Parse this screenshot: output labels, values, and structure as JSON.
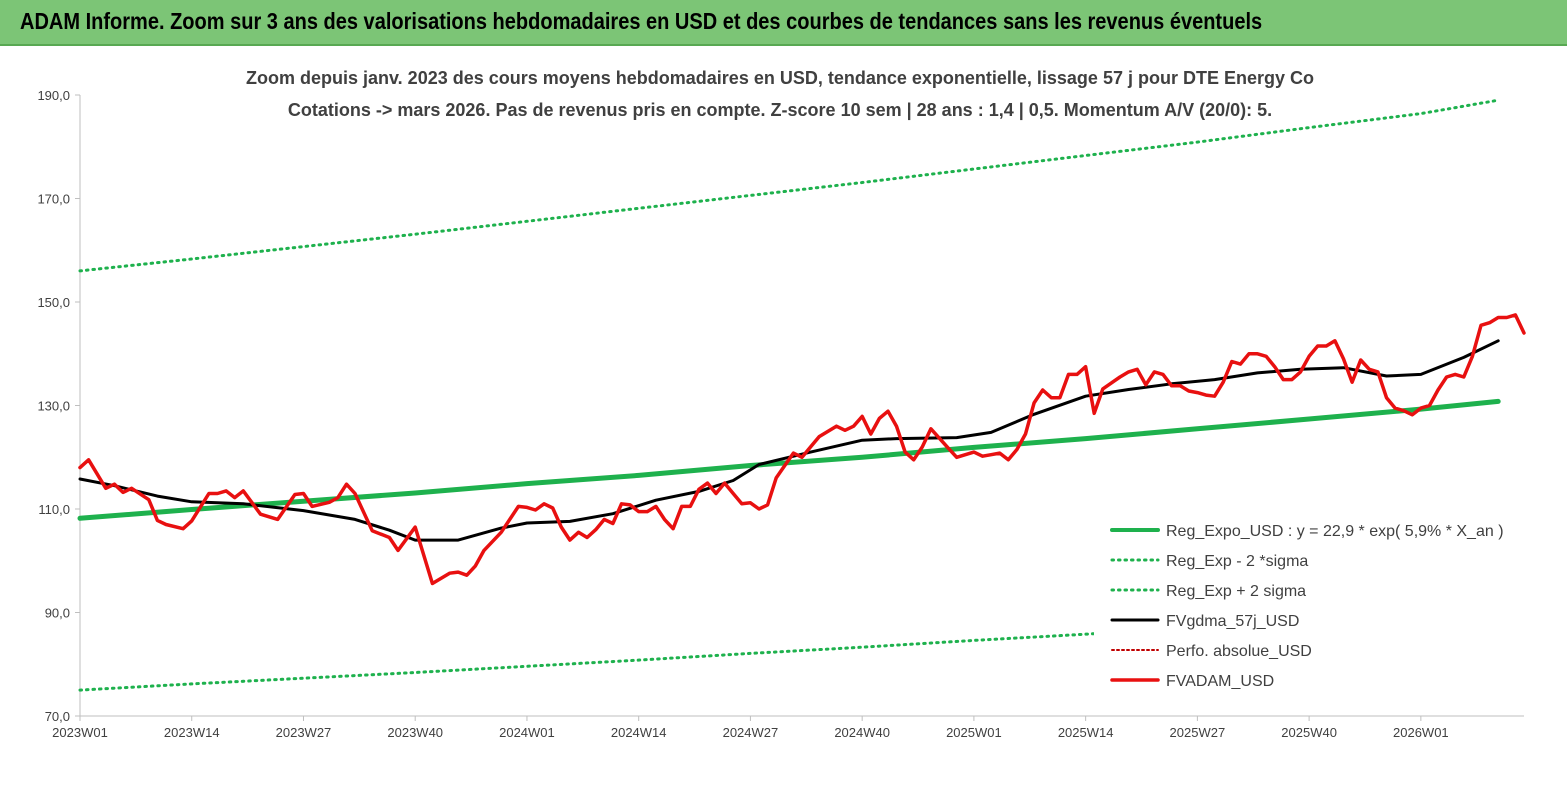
{
  "header": {
    "title": "ADAM Informe. Zoom sur 3 ans des valorisations hebdomadaires en USD et des courbes de tendances sans les revenus éventuels"
  },
  "colors": {
    "header_bg": "#7cc576",
    "trend": "#1eb14d",
    "band": "#1eb14d",
    "smooth": "#000000",
    "perfo": "#c00000",
    "price": "#e81010"
  },
  "chart_data": {
    "type": "line",
    "title": "Zoom depuis janv. 2023 des cours moyens hebdomadaires en USD, tendance exponentielle, lissage 57 j pour DTE Energy Co",
    "subtitle": "Cotations -> mars 2026. Pas de revenus pris en compte. Z-score 10 sem  | 28 ans : 1,4  | 0,5. Momentum A/V (20/0): 5.",
    "x_tick_labels": [
      "2023W01",
      "2023W14",
      "2023W27",
      "2023W40",
      "2024W01",
      "2024W14",
      "2024W27",
      "2024W40",
      "2025W01",
      "2025W14",
      "2025W27",
      "2025W40",
      "2026W01"
    ],
    "y_tick_labels": [
      "70,0",
      "90,0",
      "110,0",
      "130,0",
      "150,0",
      "170,0",
      "190,0"
    ],
    "ylim": [
      70,
      190
    ],
    "grid": false,
    "legend_position": "bottom-right",
    "series": [
      {
        "name": "Reg_Expo_USD : y = 22,9 * exp( 5,9% *  X_an )",
        "style": "solid-thick",
        "points": [
          [
            1,
            108.2
          ],
          [
            14,
            109.9
          ],
          [
            27,
            111.5
          ],
          [
            40,
            113.1
          ],
          [
            53,
            114.9
          ],
          [
            66,
            116.5
          ],
          [
            79,
            118.4
          ],
          [
            92,
            120.0
          ],
          [
            105,
            121.9
          ],
          [
            118,
            123.6
          ],
          [
            131,
            125.5
          ],
          [
            144,
            127.4
          ],
          [
            157,
            129.3
          ],
          [
            166,
            130.8
          ]
        ]
      },
      {
        "name": "Reg_Exp - 2 *sigma",
        "style": "dotted",
        "points": [
          [
            1,
            75.0
          ],
          [
            14,
            76.2
          ],
          [
            27,
            77.3
          ],
          [
            40,
            78.4
          ],
          [
            53,
            79.6
          ],
          [
            66,
            80.8
          ],
          [
            79,
            82.1
          ],
          [
            92,
            83.3
          ],
          [
            105,
            84.6
          ],
          [
            118,
            85.8
          ],
          [
            131,
            87.1
          ],
          [
            144,
            88.4
          ],
          [
            157,
            89.7
          ],
          [
            166,
            90.8
          ]
        ]
      },
      {
        "name": "Reg_Exp + 2 sigma",
        "style": "dotted",
        "points": [
          [
            1,
            156.0
          ],
          [
            14,
            158.3
          ],
          [
            27,
            160.7
          ],
          [
            40,
            163.1
          ],
          [
            53,
            165.6
          ],
          [
            66,
            168.1
          ],
          [
            79,
            170.6
          ],
          [
            92,
            173.1
          ],
          [
            105,
            175.7
          ],
          [
            118,
            178.3
          ],
          [
            131,
            180.9
          ],
          [
            144,
            183.7
          ],
          [
            157,
            186.4
          ],
          [
            166,
            189.0
          ]
        ]
      },
      {
        "name": "FVgdma_57j_USD",
        "style": "solid",
        "points": [
          [
            1,
            115.8
          ],
          [
            5,
            114.5
          ],
          [
            10,
            112.5
          ],
          [
            14,
            111.4
          ],
          [
            20,
            111.0
          ],
          [
            27,
            109.7
          ],
          [
            33,
            108.0
          ],
          [
            37,
            105.9
          ],
          [
            40,
            104.0
          ],
          [
            45,
            104.0
          ],
          [
            50,
            106.3
          ],
          [
            53,
            107.3
          ],
          [
            58,
            107.6
          ],
          [
            63,
            109.1
          ],
          [
            68,
            111.7
          ],
          [
            73,
            113.4
          ],
          [
            77,
            115.5
          ],
          [
            80,
            118.6
          ],
          [
            86,
            121.0
          ],
          [
            92,
            123.3
          ],
          [
            96,
            123.6
          ],
          [
            103,
            123.8
          ],
          [
            107,
            124.8
          ],
          [
            112,
            128.3
          ],
          [
            118,
            131.8
          ],
          [
            123,
            133.1
          ],
          [
            128,
            134.2
          ],
          [
            133,
            135.0
          ],
          [
            138,
            136.3
          ],
          [
            143,
            137.0
          ],
          [
            148,
            137.3
          ],
          [
            153,
            135.7
          ],
          [
            157,
            136.0
          ],
          [
            162,
            139.3
          ],
          [
            166,
            142.5
          ]
        ]
      },
      {
        "name": "Perfo. absolue_USD",
        "style": "dotted",
        "points": []
      },
      {
        "name": "FVADAM_USD",
        "style": "solid-thick",
        "points": [
          [
            1,
            118.0
          ],
          [
            2,
            119.5
          ],
          [
            4,
            114.0
          ],
          [
            5,
            114.8
          ],
          [
            6,
            113.2
          ],
          [
            7,
            114.0
          ],
          [
            9,
            111.8
          ],
          [
            10,
            107.8
          ],
          [
            11,
            107.0
          ],
          [
            13,
            106.2
          ],
          [
            14,
            107.7
          ],
          [
            16,
            113.0
          ],
          [
            17,
            113.0
          ],
          [
            18,
            113.5
          ],
          [
            19,
            112.2
          ],
          [
            20,
            113.5
          ],
          [
            22,
            109.0
          ],
          [
            24,
            108.0
          ],
          [
            26,
            112.8
          ],
          [
            27,
            113.0
          ],
          [
            28,
            110.5
          ],
          [
            30,
            111.3
          ],
          [
            31,
            112.2
          ],
          [
            32,
            114.8
          ],
          [
            33,
            113.0
          ],
          [
            35,
            105.8
          ],
          [
            37,
            104.5
          ],
          [
            38,
            102.0
          ],
          [
            40,
            106.5
          ],
          [
            42,
            95.6
          ],
          [
            44,
            97.6
          ],
          [
            45,
            97.8
          ],
          [
            46,
            97.2
          ],
          [
            47,
            99.0
          ],
          [
            48,
            102.0
          ],
          [
            50,
            105.5
          ],
          [
            52,
            110.5
          ],
          [
            53,
            110.3
          ],
          [
            54,
            109.8
          ],
          [
            55,
            111.0
          ],
          [
            56,
            110.2
          ],
          [
            57,
            106.5
          ],
          [
            58,
            104.0
          ],
          [
            59,
            105.5
          ],
          [
            60,
            104.5
          ],
          [
            61,
            106.0
          ],
          [
            62,
            108.0
          ],
          [
            63,
            107.2
          ],
          [
            64,
            111.0
          ],
          [
            65,
            110.8
          ],
          [
            66,
            109.5
          ],
          [
            67,
            109.5
          ],
          [
            68,
            110.5
          ],
          [
            69,
            108.0
          ],
          [
            70,
            106.2
          ],
          [
            71,
            110.5
          ],
          [
            72,
            110.5
          ],
          [
            73,
            113.8
          ],
          [
            74,
            115.0
          ],
          [
            75,
            113.0
          ],
          [
            76,
            115.0
          ],
          [
            77,
            113.0
          ],
          [
            78,
            111.0
          ],
          [
            79,
            111.2
          ],
          [
            80,
            110.0
          ],
          [
            81,
            110.8
          ],
          [
            82,
            116.0
          ],
          [
            84,
            120.8
          ],
          [
            85,
            120.0
          ],
          [
            86,
            122.0
          ],
          [
            87,
            124.0
          ],
          [
            89,
            126.0
          ],
          [
            90,
            125.2
          ],
          [
            91,
            126.0
          ],
          [
            92,
            127.9
          ],
          [
            93,
            124.5
          ],
          [
            94,
            127.5
          ],
          [
            95,
            128.9
          ],
          [
            96,
            126.0
          ],
          [
            97,
            121.0
          ],
          [
            98,
            119.5
          ],
          [
            99,
            122.0
          ],
          [
            100,
            125.5
          ],
          [
            102,
            121.8
          ],
          [
            103,
            120.0
          ],
          [
            105,
            121.0
          ],
          [
            106,
            120.2
          ],
          [
            107,
            120.5
          ],
          [
            108,
            120.8
          ],
          [
            109,
            119.5
          ],
          [
            110,
            121.5
          ],
          [
            111,
            124.5
          ],
          [
            112,
            130.5
          ],
          [
            113,
            133.0
          ],
          [
            114,
            131.5
          ],
          [
            115,
            131.5
          ],
          [
            116,
            136.0
          ],
          [
            117,
            136.0
          ],
          [
            118,
            137.5
          ],
          [
            119,
            128.5
          ],
          [
            120,
            133.2
          ],
          [
            122,
            135.5
          ],
          [
            123,
            136.5
          ],
          [
            124,
            137.0
          ],
          [
            125,
            134.0
          ],
          [
            126,
            136.5
          ],
          [
            127,
            136.0
          ],
          [
            128,
            133.8
          ],
          [
            129,
            133.8
          ],
          [
            130,
            132.8
          ],
          [
            131,
            132.5
          ],
          [
            132,
            132.0
          ],
          [
            133,
            131.8
          ],
          [
            134,
            134.5
          ],
          [
            135,
            138.5
          ],
          [
            136,
            138.0
          ],
          [
            137,
            140.0
          ],
          [
            138,
            140.0
          ],
          [
            139,
            139.5
          ],
          [
            140,
            137.5
          ],
          [
            141,
            135.0
          ],
          [
            142,
            135.0
          ],
          [
            143,
            136.5
          ],
          [
            144,
            139.5
          ],
          [
            145,
            141.5
          ],
          [
            146,
            141.5
          ],
          [
            147,
            142.5
          ],
          [
            148,
            139.0
          ],
          [
            149,
            134.5
          ],
          [
            150,
            138.8
          ],
          [
            151,
            137.0
          ],
          [
            152,
            136.5
          ],
          [
            153,
            131.5
          ],
          [
            154,
            129.5
          ],
          [
            155,
            129.0
          ],
          [
            156,
            128.2
          ],
          [
            157,
            129.5
          ],
          [
            158,
            130.0
          ],
          [
            159,
            133.0
          ],
          [
            160,
            135.5
          ],
          [
            161,
            136.0
          ],
          [
            162,
            135.5
          ],
          [
            163,
            139.5
          ],
          [
            164,
            145.5
          ],
          [
            165,
            146.0
          ],
          [
            166,
            147.0
          ],
          [
            167,
            147.0
          ],
          [
            168,
            147.5
          ],
          [
            169,
            144.0
          ]
        ]
      }
    ]
  }
}
